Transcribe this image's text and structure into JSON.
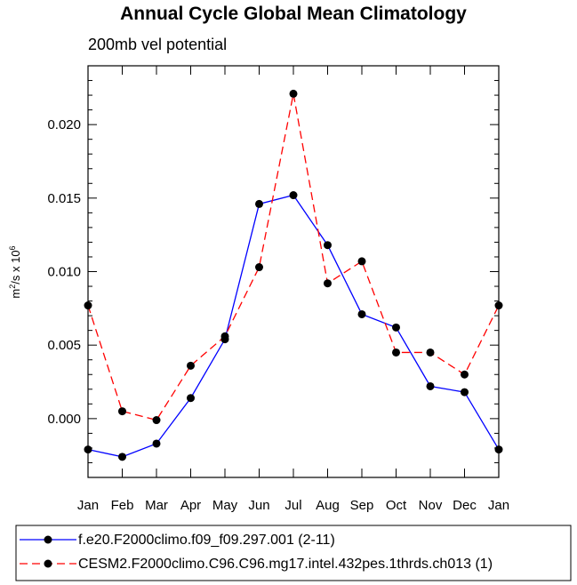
{
  "chart_data": {
    "type": "line",
    "title": "Annual Cycle Global Mean Climatology",
    "subtitle": "200mb vel potential",
    "xlabel": "",
    "ylabel": "m^2/s x 10^6",
    "ylabel_parts": {
      "base": "m",
      "sup1": "2",
      "mid": "/s x 10",
      "sup2": "6"
    },
    "categories": [
      "Jan",
      "Feb",
      "Mar",
      "Apr",
      "May",
      "Jun",
      "Jul",
      "Aug",
      "Sep",
      "Oct",
      "Nov",
      "Dec",
      "Jan"
    ],
    "ylim": [
      -0.004,
      0.024
    ],
    "yticks": [
      "0.000",
      "0.005",
      "0.010",
      "0.015",
      "0.020"
    ],
    "ytick_values": [
      0.0,
      0.005,
      0.01,
      0.015,
      0.02
    ],
    "grid": false,
    "legend_position": "bottom",
    "series": [
      {
        "name": "f.e20.F2000climo.f09_f09.297.001 (2-11)",
        "color": "#0000ff",
        "dash": "solid",
        "values": [
          -0.0021,
          -0.0026,
          -0.0017,
          0.0014,
          0.0054,
          0.0146,
          0.0152,
          0.0118,
          0.0071,
          0.0062,
          0.0022,
          0.0018,
          -0.0021
        ]
      },
      {
        "name": "CESM2.F2000climo.C96.C96.mg17.intel.432pes.1thrds.ch013 (1)",
        "color": "#ff0000",
        "dash": "dashed",
        "values": [
          0.0077,
          0.0005,
          -0.0001,
          0.0036,
          0.0056,
          0.0103,
          0.0221,
          0.0092,
          0.0107,
          0.0045,
          0.0045,
          0.003,
          0.0077
        ]
      }
    ]
  }
}
